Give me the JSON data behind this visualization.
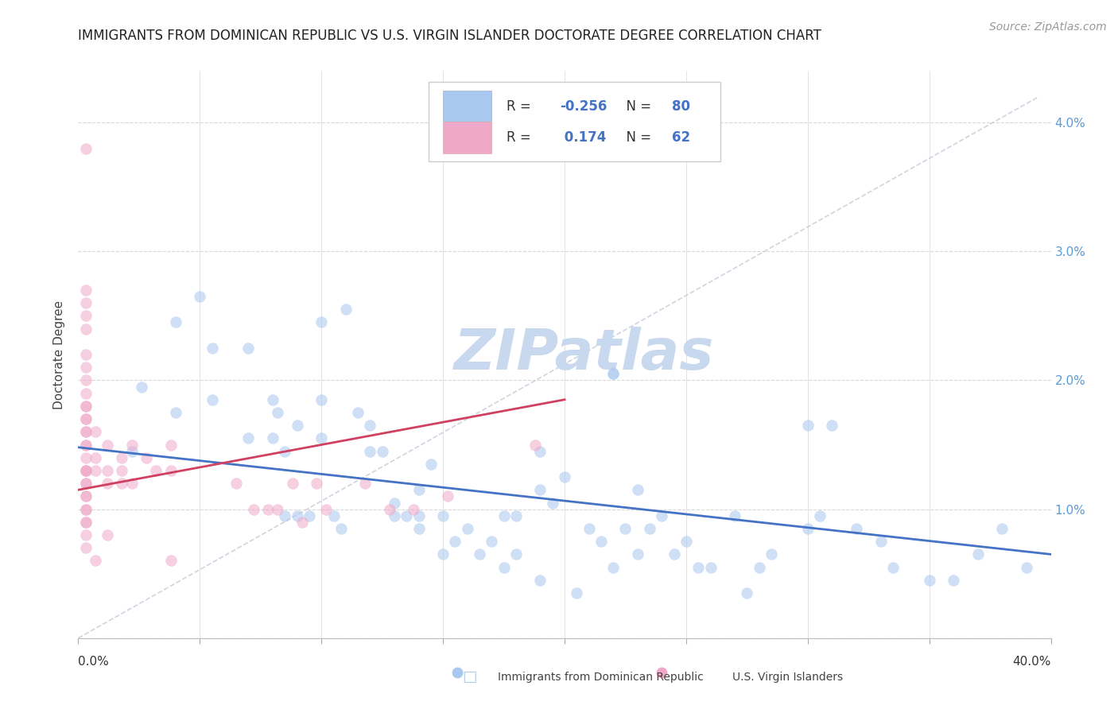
{
  "title": "IMMIGRANTS FROM DOMINICAN REPUBLIC VS U.S. VIRGIN ISLANDER DOCTORATE DEGREE CORRELATION CHART",
  "source": "Source: ZipAtlas.com",
  "ylabel": "Doctorate Degree",
  "xlim": [
    0.0,
    0.4
  ],
  "ylim": [
    0.0,
    0.044
  ],
  "color_blue": "#a8c8f0",
  "color_pink": "#f0a8c8",
  "color_blue_line": "#4472c4",
  "color_pink_line": "#d04060",
  "color_dash": "#c8c8d8",
  "watermark": "ZIPatlas",
  "blue_scatter_x": [
    0.022,
    0.026,
    0.04,
    0.04,
    0.055,
    0.055,
    0.07,
    0.07,
    0.08,
    0.082,
    0.085,
    0.09,
    0.095,
    0.1,
    0.1,
    0.105,
    0.108,
    0.115,
    0.12,
    0.125,
    0.13,
    0.135,
    0.14,
    0.14,
    0.145,
    0.15,
    0.15,
    0.155,
    0.16,
    0.165,
    0.17,
    0.175,
    0.175,
    0.18,
    0.18,
    0.19,
    0.19,
    0.195,
    0.2,
    0.205,
    0.21,
    0.215,
    0.22,
    0.22,
    0.225,
    0.23,
    0.235,
    0.24,
    0.245,
    0.25,
    0.255,
    0.26,
    0.27,
    0.275,
    0.28,
    0.285,
    0.3,
    0.305,
    0.32,
    0.33,
    0.335,
    0.35,
    0.36,
    0.37,
    0.38,
    0.39,
    0.3,
    0.31,
    0.22,
    0.23,
    0.19,
    0.1,
    0.11,
    0.12,
    0.13,
    0.14,
    0.08,
    0.085,
    0.09,
    0.05
  ],
  "blue_scatter_y": [
    0.0145,
    0.0195,
    0.0245,
    0.0175,
    0.0225,
    0.0185,
    0.0225,
    0.0155,
    0.0155,
    0.0175,
    0.0095,
    0.0165,
    0.0095,
    0.0155,
    0.0185,
    0.0095,
    0.0085,
    0.0175,
    0.0145,
    0.0145,
    0.0095,
    0.0095,
    0.0085,
    0.0115,
    0.0135,
    0.0095,
    0.0065,
    0.0075,
    0.0085,
    0.0065,
    0.0075,
    0.0055,
    0.0095,
    0.0095,
    0.0065,
    0.0115,
    0.0045,
    0.0105,
    0.0125,
    0.0035,
    0.0085,
    0.0075,
    0.0205,
    0.0205,
    0.0085,
    0.0115,
    0.0085,
    0.0095,
    0.0065,
    0.0075,
    0.0055,
    0.0055,
    0.0095,
    0.0035,
    0.0055,
    0.0065,
    0.0165,
    0.0095,
    0.0085,
    0.0075,
    0.0055,
    0.0045,
    0.0045,
    0.0065,
    0.0085,
    0.0055,
    0.0085,
    0.0165,
    0.0055,
    0.0065,
    0.0145,
    0.0245,
    0.0255,
    0.0165,
    0.0105,
    0.0095,
    0.0185,
    0.0145,
    0.0095,
    0.0265
  ],
  "pink_scatter_x": [
    0.003,
    0.003,
    0.003,
    0.003,
    0.003,
    0.003,
    0.003,
    0.003,
    0.003,
    0.003,
    0.003,
    0.003,
    0.003,
    0.003,
    0.003,
    0.003,
    0.003,
    0.003,
    0.003,
    0.003,
    0.003,
    0.003,
    0.003,
    0.003,
    0.003,
    0.003,
    0.003,
    0.003,
    0.003,
    0.003,
    0.003,
    0.007,
    0.007,
    0.007,
    0.007,
    0.012,
    0.012,
    0.012,
    0.012,
    0.018,
    0.018,
    0.018,
    0.022,
    0.022,
    0.028,
    0.032,
    0.038,
    0.038,
    0.038,
    0.065,
    0.072,
    0.078,
    0.082,
    0.088,
    0.092,
    0.098,
    0.102,
    0.118,
    0.128,
    0.138,
    0.152,
    0.188
  ],
  "pink_scatter_y": [
    0.038,
    0.027,
    0.026,
    0.025,
    0.024,
    0.022,
    0.021,
    0.02,
    0.019,
    0.018,
    0.018,
    0.017,
    0.017,
    0.016,
    0.016,
    0.015,
    0.015,
    0.014,
    0.013,
    0.013,
    0.013,
    0.012,
    0.012,
    0.011,
    0.011,
    0.01,
    0.01,
    0.009,
    0.009,
    0.008,
    0.007,
    0.016,
    0.014,
    0.013,
    0.006,
    0.015,
    0.013,
    0.012,
    0.008,
    0.014,
    0.013,
    0.012,
    0.015,
    0.012,
    0.014,
    0.013,
    0.015,
    0.013,
    0.006,
    0.012,
    0.01,
    0.01,
    0.01,
    0.012,
    0.009,
    0.012,
    0.01,
    0.012,
    0.01,
    0.01,
    0.011,
    0.015
  ],
  "blue_line_x0": 0.0,
  "blue_line_x1": 0.4,
  "blue_line_y0": 0.0148,
  "blue_line_y1": 0.0065,
  "pink_line_x0": 0.0,
  "pink_line_x1": 0.2,
  "pink_line_y0": 0.0115,
  "pink_line_y1": 0.0185,
  "dash_line_x0": 0.0,
  "dash_line_x1": 0.395,
  "dash_line_y0": 0.0,
  "dash_line_y1": 0.042,
  "background_color": "#ffffff",
  "grid_color": "#d8d8d8",
  "title_fontsize": 12,
  "source_fontsize": 10,
  "ylabel_fontsize": 11,
  "tick_fontsize": 11,
  "legend_r1_val": "-0.256",
  "legend_n1_val": "80",
  "legend_r2_val": "0.174",
  "legend_n2_val": "62",
  "scatter_size": 100,
  "scatter_alpha": 0.55,
  "watermark_fontsize": 52,
  "watermark_color": "#c8d8ee",
  "legend_label1": "Immigrants from Dominican Republic",
  "legend_label2": "U.S. Virgin Islanders"
}
